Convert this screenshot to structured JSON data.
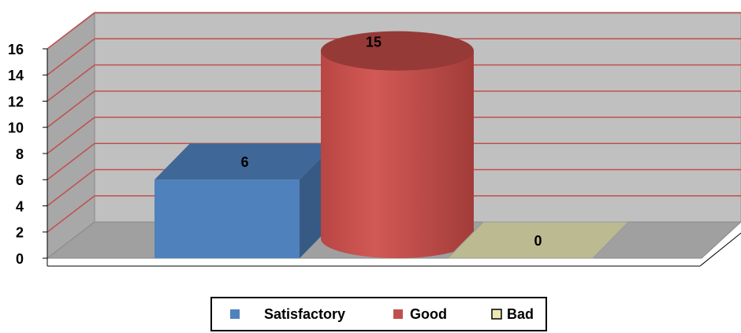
{
  "chart_data": {
    "type": "bar3d",
    "categories": [
      "Satisfactory",
      "Good",
      "Bad"
    ],
    "values": [
      6,
      15,
      0
    ],
    "shapes": [
      "box",
      "cylinder",
      "box"
    ],
    "colors": [
      "#4f81bd",
      "#c0504d",
      "#ebe8b4"
    ],
    "ylim": [
      0,
      16
    ],
    "yticks": [
      0,
      2,
      4,
      6,
      8,
      10,
      12,
      14,
      16
    ],
    "grid": true,
    "legend": "bottom"
  }
}
